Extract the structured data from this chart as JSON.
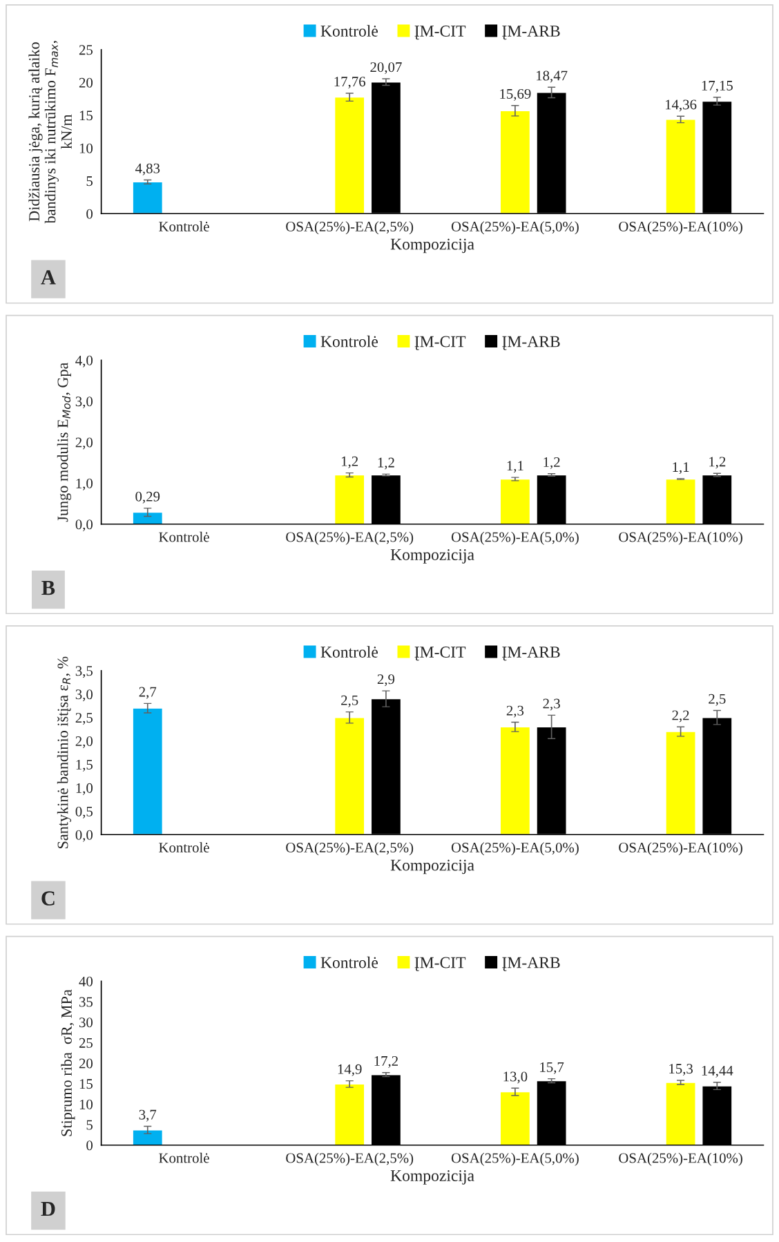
{
  "chart_data": [
    {
      "type": "bar",
      "ylabel": "Didžiausia jėga, kurią atlaiko\nbandinys iki nutrūkimo F$_{max}$,\nkN/m",
      "xlabel": "Kompozicija",
      "categories": [
        "Kontrolė",
        "OSA(25%)-EA(2,5%)",
        "OSA(25%)-EA(5,0%)",
        "OSA(25%)-EA(10%)"
      ],
      "ylim": [
        0,
        25
      ],
      "yticks": [
        0,
        5,
        10,
        15,
        20,
        25
      ],
      "legend": "top",
      "annotations": [
        "A"
      ],
      "series": [
        {
          "name": "Kontrolė",
          "color": "#00b0f0",
          "values": [
            4.83,
            null,
            null,
            null
          ],
          "errors": [
            0.3,
            null,
            null,
            null
          ],
          "value_labels": [
            "4,83",
            null,
            null,
            null
          ]
        },
        {
          "name": "ĮM-CIT",
          "color": "#ffff00",
          "values": [
            null,
            17.76,
            15.69,
            14.36
          ],
          "errors": [
            null,
            0.6,
            0.8,
            0.5
          ],
          "value_labels": [
            null,
            "17,76",
            "15,69",
            "14,36"
          ]
        },
        {
          "name": "ĮM-ARB",
          "color": "#000000",
          "values": [
            null,
            20.07,
            18.47,
            17.15
          ],
          "errors": [
            null,
            0.5,
            0.8,
            0.6
          ],
          "value_labels": [
            null,
            "20,07",
            "18,47",
            "17,15"
          ]
        }
      ]
    },
    {
      "type": "bar",
      "ylabel": "Jungo modulis E$_{Mod}$, Gpa",
      "xlabel": "Kompozicija",
      "categories": [
        "Kontrolė",
        "OSA(25%)-EA(2,5%)",
        "OSA(25%)-EA(5,0%)",
        "OSA(25%)-EA(10%)"
      ],
      "ylim": [
        0,
        4
      ],
      "yticks": [
        {
          "value": 0,
          "label": "0,0"
        },
        {
          "value": 1,
          "label": "1,0"
        },
        {
          "value": 2,
          "label": "2,0"
        },
        {
          "value": 3,
          "label": "3,0"
        },
        {
          "value": 4,
          "label": "4,0"
        }
      ],
      "legend": "top",
      "annotations": [
        "B"
      ],
      "series": [
        {
          "name": "Kontrolė",
          "color": "#00b0f0",
          "values": [
            0.29,
            null,
            null,
            null
          ],
          "errors": [
            0.1,
            null,
            null,
            null
          ],
          "value_labels": [
            "0,29",
            null,
            null,
            null
          ]
        },
        {
          "name": "ĮM-CIT",
          "color": "#ffff00",
          "values": [
            null,
            1.2,
            1.1,
            1.1
          ],
          "errors": [
            null,
            0.05,
            0.04,
            0.01
          ],
          "value_labels": [
            null,
            "1,2",
            "1,1",
            "1,1"
          ]
        },
        {
          "name": "ĮM-ARB",
          "color": "#000000",
          "values": [
            null,
            1.2,
            1.2,
            1.2
          ],
          "errors": [
            null,
            0.02,
            0.03,
            0.04
          ],
          "value_labels": [
            null,
            "1,2",
            "1,2",
            "1,2"
          ]
        }
      ]
    },
    {
      "type": "bar",
      "ylabel": "Santykinė bandinio ištįsa ε$_{R}$, %",
      "xlabel": "Kompozicija",
      "categories": [
        "Kontrolė",
        "OSA(25%)-EA(2,5%)",
        "OSA(25%)-EA(5,0%)",
        "OSA(25%)-EA(10%)"
      ],
      "ylim": [
        0,
        3.5
      ],
      "yticks": [
        {
          "value": 0,
          "label": "0,0"
        },
        {
          "value": 0.5,
          "label": "0,5"
        },
        {
          "value": 1,
          "label": "1,0"
        },
        {
          "value": 1.5,
          "label": "1,5"
        },
        {
          "value": 2,
          "label": "2,0"
        },
        {
          "value": 2.5,
          "label": "2,5"
        },
        {
          "value": 3,
          "label": "3,0"
        },
        {
          "value": 3.5,
          "label": "3,5"
        }
      ],
      "legend": "top",
      "annotations": [
        "C"
      ],
      "series": [
        {
          "name": "Kontrolė",
          "color": "#00b0f0",
          "values": [
            2.7,
            null,
            null,
            null
          ],
          "errors": [
            0.1,
            null,
            null,
            null
          ],
          "value_labels": [
            "2,7",
            null,
            null,
            null
          ]
        },
        {
          "name": "ĮM-CIT",
          "color": "#ffff00",
          "values": [
            null,
            2.5,
            2.3,
            2.2
          ],
          "errors": [
            null,
            0.12,
            0.1,
            0.1
          ],
          "value_labels": [
            null,
            "2,5",
            "2,3",
            "2,2"
          ]
        },
        {
          "name": "ĮM-ARB",
          "color": "#000000",
          "values": [
            null,
            2.9,
            2.3,
            2.5
          ],
          "errors": [
            null,
            0.17,
            0.25,
            0.15
          ],
          "value_labels": [
            null,
            "2,9",
            "2,3",
            "2,5"
          ]
        }
      ]
    },
    {
      "type": "bar",
      "ylabel": "Stiprumo riba  σR, MPa",
      "xlabel": "Kompozicija",
      "categories": [
        "Kontrolė",
        "OSA(25%)-EA(2,5%)",
        "OSA(25%)-EA(5,0%)",
        "OSA(25%)-EA(10%)"
      ],
      "ylim": [
        0,
        40
      ],
      "yticks": [
        0,
        5,
        10,
        15,
        20,
        25,
        30,
        35,
        40
      ],
      "legend": "top",
      "annotations": [
        "D"
      ],
      "series": [
        {
          "name": "Kontrolė",
          "color": "#00b0f0",
          "values": [
            3.7,
            null,
            null,
            null
          ],
          "errors": [
            0.9,
            null,
            null,
            null
          ],
          "value_labels": [
            "3,7",
            null,
            null,
            null
          ]
        },
        {
          "name": "ĮM-CIT",
          "color": "#ffff00",
          "values": [
            null,
            14.9,
            13.0,
            15.3
          ],
          "errors": [
            null,
            0.8,
            0.9,
            0.5
          ],
          "value_labels": [
            null,
            "14,9",
            "13,0",
            "15,3"
          ]
        },
        {
          "name": "ĮM-ARB",
          "color": "#000000",
          "values": [
            null,
            17.2,
            15.7,
            14.44
          ],
          "errors": [
            null,
            0.5,
            0.5,
            0.9
          ],
          "value_labels": [
            null,
            "17,2",
            "15,7",
            "14,44"
          ]
        }
      ]
    }
  ]
}
